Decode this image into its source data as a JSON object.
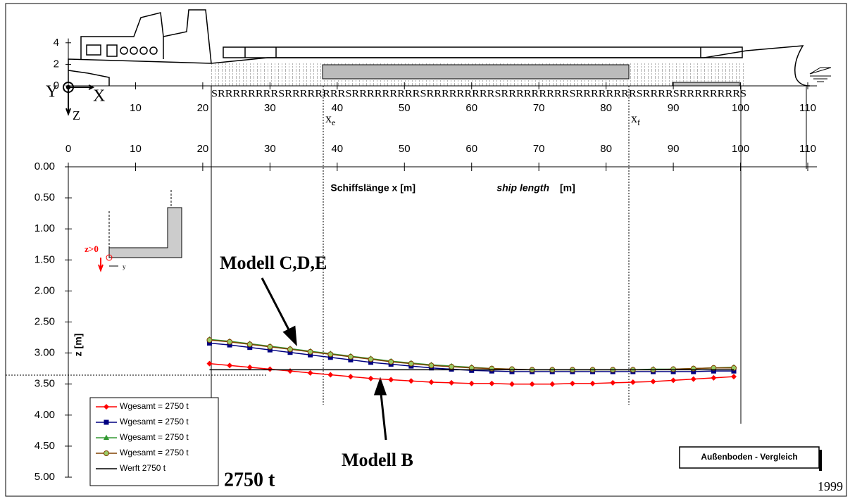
{
  "chart_data": {
    "type": "line",
    "title": "Schiffslänge x [m]",
    "title_en": "ship length",
    "title_unit": "[m]",
    "y_label": "z [m]",
    "xlim": [
      0,
      110
    ],
    "ylim": [
      0,
      5
    ],
    "y_reversed": true,
    "xticks": [
      0,
      10,
      20,
      30,
      40,
      50,
      60,
      70,
      80,
      90,
      100,
      110
    ],
    "yticks": [
      {
        "value": 0,
        "label": "0.00"
      },
      {
        "value": 0.5,
        "label": "0.50"
      },
      {
        "value": 1,
        "label": "1.00"
      },
      {
        "value": 1.5,
        "label": "1.50"
      },
      {
        "value": 2,
        "label": "2.00"
      },
      {
        "value": 2.5,
        "label": "2.50"
      },
      {
        "value": 3,
        "label": "3.00"
      },
      {
        "value": 3.5,
        "label": "3.50"
      },
      {
        "value": 4,
        "label": "4.00"
      },
      {
        "value": 4.5,
        "label": "4.50"
      },
      {
        "value": 5,
        "label": "5.00"
      }
    ],
    "x": [
      21,
      24,
      27,
      30,
      33,
      36,
      39,
      42,
      45,
      48,
      51,
      54,
      57,
      60,
      63,
      66,
      69,
      72,
      75,
      78,
      81,
      84,
      87,
      90,
      93,
      96,
      99
    ],
    "series": [
      {
        "name": "Wgesamt = 2750 t",
        "color": "#ff0000",
        "marker": "diamond",
        "values": [
          3.17,
          3.2,
          3.23,
          3.26,
          3.29,
          3.32,
          3.35,
          3.38,
          3.41,
          3.43,
          3.45,
          3.47,
          3.48,
          3.49,
          3.49,
          3.5,
          3.5,
          3.5,
          3.49,
          3.49,
          3.48,
          3.47,
          3.46,
          3.44,
          3.42,
          3.4,
          3.38
        ]
      },
      {
        "name": "Wgesamt = 2750 t",
        "color": "#000080",
        "marker": "square",
        "values": [
          2.84,
          2.87,
          2.91,
          2.95,
          2.99,
          3.03,
          3.07,
          3.11,
          3.15,
          3.18,
          3.21,
          3.24,
          3.26,
          3.28,
          3.29,
          3.3,
          3.3,
          3.3,
          3.3,
          3.3,
          3.3,
          3.3,
          3.3,
          3.3,
          3.3,
          3.29,
          3.29
        ]
      },
      {
        "name": "Wgesamt = 2750 t",
        "color": "#339933",
        "marker": "triangle",
        "values": [
          2.78,
          2.81,
          2.85,
          2.89,
          2.93,
          2.97,
          3.01,
          3.05,
          3.09,
          3.13,
          3.16,
          3.19,
          3.21,
          3.23,
          3.25,
          3.26,
          3.27,
          3.27,
          3.27,
          3.27,
          3.27,
          3.27,
          3.26,
          3.26,
          3.25,
          3.24,
          3.23
        ]
      },
      {
        "name": "Wgesamt = 2750 t",
        "color": "#804000",
        "marker": "circle",
        "values": [
          2.79,
          2.82,
          2.86,
          2.9,
          2.94,
          2.98,
          3.02,
          3.06,
          3.1,
          3.14,
          3.17,
          3.2,
          3.22,
          3.24,
          3.25,
          3.26,
          3.27,
          3.27,
          3.27,
          3.27,
          3.27,
          3.27,
          3.27,
          3.26,
          3.25,
          3.24,
          3.24
        ]
      },
      {
        "name": "Werft 2750 t",
        "color": "#000000",
        "marker": "none",
        "x": [
          21,
          99
        ],
        "values": [
          3.27,
          3.27
        ]
      }
    ],
    "annotations": [
      "Modell C,D,E",
      "Modell B",
      "2750 t",
      "Außenboden - Vergleich",
      "1999"
    ],
    "sections": [
      {
        "label": "x",
        "sub": "e"
      },
      {
        "label": "x",
        "sub": "f"
      }
    ],
    "ship": {
      "xticks": [
        10,
        20,
        30,
        40,
        50,
        60,
        70,
        80,
        90,
        100,
        110
      ],
      "yticks": [
        0,
        2,
        4
      ],
      "frames": "SRRRRRRRRSRRRRRRRRSRRRRRRRRRSRRRRRRRRRSRRRRRRRRRSRRRRRRRRSRRRRSRRRRRRRRS",
      "axes": [
        "X",
        "Y",
        "Z"
      ]
    },
    "inset": {
      "z_label": "z>0",
      "y_label": "y"
    }
  }
}
